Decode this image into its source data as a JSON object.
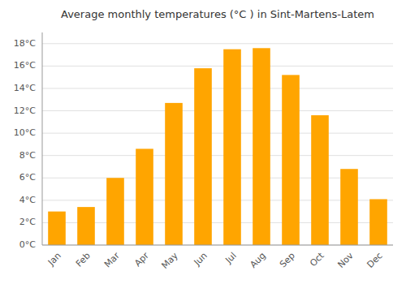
{
  "chart_data": {
    "type": "bar",
    "title": "Average monthly temperatures (°C ) in Sint-Martens-Latem",
    "categories": [
      "Jan",
      "Feb",
      "Mar",
      "Apr",
      "May",
      "Jun",
      "Jul",
      "Aug",
      "Sep",
      "Oct",
      "Nov",
      "Dec"
    ],
    "values": [
      3.0,
      3.4,
      6.0,
      8.6,
      12.7,
      15.8,
      17.5,
      17.6,
      15.2,
      11.6,
      6.8,
      4.1
    ],
    "color": "#FFA500",
    "ylim": [
      0,
      19
    ],
    "yticks": [
      {
        "value": 0,
        "label": "0°C"
      },
      {
        "value": 2,
        "label": "2°C"
      },
      {
        "value": 4,
        "label": "4°C"
      },
      {
        "value": 6,
        "label": "6°C"
      },
      {
        "value": 8,
        "label": "8°C"
      },
      {
        "value": 10,
        "label": "10°C"
      },
      {
        "value": 12,
        "label": "12°C"
      },
      {
        "value": 14,
        "label": "14°C"
      },
      {
        "value": 16,
        "label": "16°C"
      },
      {
        "value": 18,
        "label": "18°C"
      }
    ],
    "grid": true
  }
}
